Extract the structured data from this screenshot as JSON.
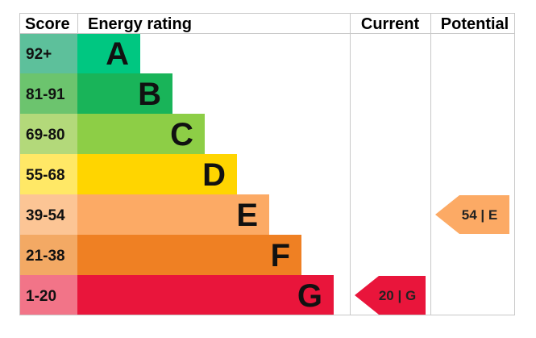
{
  "chart_data": {
    "type": "table",
    "headers": {
      "score": "Score",
      "rating": "Energy rating",
      "current": "Current",
      "potential": "Potential"
    },
    "bands": [
      {
        "score": "92+",
        "letter": "A",
        "score_bg": "#5dc09b",
        "bar_color": "#00c781"
      },
      {
        "score": "81-91",
        "letter": "B",
        "score_bg": "#6cc46e",
        "bar_color": "#19b459"
      },
      {
        "score": "69-80",
        "letter": "C",
        "score_bg": "#b3d97a",
        "bar_color": "#8dce46"
      },
      {
        "score": "55-68",
        "letter": "D",
        "score_bg": "#ffe866",
        "bar_color": "#ffd500"
      },
      {
        "score": "39-54",
        "letter": "E",
        "score_bg": "#fcc595",
        "bar_color": "#fcaa65"
      },
      {
        "score": "21-38",
        "letter": "F",
        "score_bg": "#f3a964",
        "bar_color": "#ef8023"
      },
      {
        "score": "1-20",
        "letter": "G",
        "score_bg": "#f27488",
        "bar_color": "#e9153b"
      }
    ],
    "current": {
      "value": 20,
      "band": "G",
      "label": "20 | G",
      "color": "#e9153b"
    },
    "potential": {
      "value": 54,
      "band": "E",
      "label": "54 | E",
      "color": "#fcaa65"
    }
  }
}
